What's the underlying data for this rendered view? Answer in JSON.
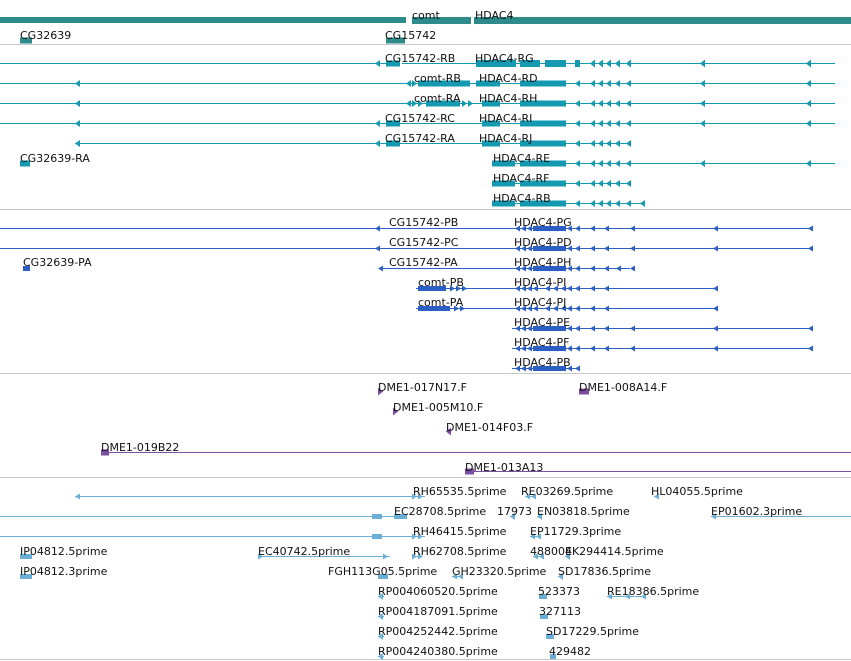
{
  "colors": {
    "genes": "#2e8b8b",
    "rna": "#149ab0",
    "protein": "#2b5fc4",
    "clone": "#7b4fa5",
    "est": "#6baed6",
    "divider": "#c8c8c8"
  },
  "tracks": [
    {
      "id": "genes",
      "features": [
        {
          "name": "comt",
          "color": "#2e8b8b"
        },
        {
          "name": "HDAC4",
          "color": "#2e8b8b"
        },
        {
          "name": "CG32639",
          "color": "#2e8b8b"
        },
        {
          "name": "CG15742",
          "color": "#2e8b8b"
        }
      ]
    },
    {
      "id": "transcripts",
      "features": [
        {
          "name": "CG15742-RB",
          "color": "#149ab0"
        },
        {
          "name": "HDAC4-RG",
          "color": "#149ab0"
        },
        {
          "name": "comt-RB",
          "color": "#149ab0"
        },
        {
          "name": "HDAC4-RD",
          "color": "#149ab0"
        },
        {
          "name": "comt-RA",
          "color": "#149ab0"
        },
        {
          "name": "HDAC4-RH",
          "color": "#149ab0"
        },
        {
          "name": "CG15742-RC",
          "color": "#149ab0"
        },
        {
          "name": "HDAC4-RI",
          "color": "#149ab0"
        },
        {
          "name": "CG15742-RA",
          "color": "#149ab0"
        },
        {
          "name": "HDAC4-RJ",
          "color": "#149ab0"
        },
        {
          "name": "CG32639-RA",
          "color": "#149ab0"
        },
        {
          "name": "HDAC4-RE",
          "color": "#149ab0"
        },
        {
          "name": "HDAC4-RF",
          "color": "#149ab0"
        },
        {
          "name": "HDAC4-RB",
          "color": "#149ab0"
        }
      ]
    },
    {
      "id": "proteins",
      "features": [
        {
          "name": "CG15742-PB",
          "color": "#2b5fc4"
        },
        {
          "name": "HDAC4-PG",
          "color": "#2b5fc4"
        },
        {
          "name": "CG15742-PC",
          "color": "#2b5fc4"
        },
        {
          "name": "HDAC4-PD",
          "color": "#2b5fc4"
        },
        {
          "name": "CG32639-PA",
          "color": "#2b5fc4"
        },
        {
          "name": "CG15742-PA",
          "color": "#2b5fc4"
        },
        {
          "name": "HDAC4-PH",
          "color": "#2b5fc4"
        },
        {
          "name": "comt-PB",
          "color": "#2b5fc4"
        },
        {
          "name": "HDAC4-PI",
          "color": "#2b5fc4"
        },
        {
          "name": "comt-PA",
          "color": "#2b5fc4"
        },
        {
          "name": "HDAC4-PJ",
          "color": "#2b5fc4"
        },
        {
          "name": "HDAC4-PE",
          "color": "#2b5fc4"
        },
        {
          "name": "HDAC4-PF",
          "color": "#2b5fc4"
        },
        {
          "name": "HDAC4-PB",
          "color": "#2b5fc4"
        }
      ]
    },
    {
      "id": "clones",
      "features": [
        {
          "name": "DME1-017N17.F",
          "color": "#7b4fa5"
        },
        {
          "name": "DME1-008A14.F",
          "color": "#7b4fa5"
        },
        {
          "name": "DME1-005M10.F",
          "color": "#7b4fa5"
        },
        {
          "name": "DME1-014F03.F",
          "color": "#7b4fa5"
        },
        {
          "name": "DME1-019B22",
          "color": "#7b4fa5"
        },
        {
          "name": "DME1-013A13",
          "color": "#7b4fa5"
        }
      ]
    },
    {
      "id": "ests",
      "features": [
        {
          "name": "RH65535.5prime",
          "color": "#6baed6"
        },
        {
          "name": "RE03269.5prime",
          "color": "#6baed6"
        },
        {
          "name": "HL04055.5prime",
          "color": "#6baed6"
        },
        {
          "name": "EC28708.5prime",
          "color": "#6baed6"
        },
        {
          "name": "17973",
          "color": "#6baed6"
        },
        {
          "name": "EN03818.5prime",
          "color": "#6baed6"
        },
        {
          "name": "EP01602.3prime",
          "color": "#6baed6"
        },
        {
          "name": "RH46415.5prime",
          "color": "#6baed6"
        },
        {
          "name": "EP11729.3prime",
          "color": "#6baed6"
        },
        {
          "name": "IP04812.5prime",
          "color": "#6baed6"
        },
        {
          "name": "EC40742.5prime",
          "color": "#6baed6"
        },
        {
          "name": "RH62708.5prime",
          "color": "#6baed6"
        },
        {
          "name": "488004",
          "color": "#6baed6"
        },
        {
          "name": "EK294414.5prime",
          "color": "#6baed6"
        },
        {
          "name": "IP04812.3prime",
          "color": "#6baed6"
        },
        {
          "name": "FGH113G05.5prime",
          "color": "#6baed6"
        },
        {
          "name": "GH23320.5prime",
          "color": "#6baed6"
        },
        {
          "name": "SD17836.5prime",
          "color": "#6baed6"
        },
        {
          "name": "RP004060520.5prime",
          "color": "#6baed6"
        },
        {
          "name": "523373",
          "color": "#6baed6"
        },
        {
          "name": "RE18386.5prime",
          "color": "#6baed6"
        },
        {
          "name": "RP004187091.5prime",
          "color": "#6baed6"
        },
        {
          "name": "327113",
          "color": "#6baed6"
        },
        {
          "name": "RP004252442.5prime",
          "color": "#6baed6"
        },
        {
          "name": "SD17229.5prime",
          "color": "#6baed6"
        },
        {
          "name": "RP004240380.5prime",
          "color": "#6baed6"
        },
        {
          "name": "429482",
          "color": "#6baed6"
        }
      ]
    }
  ]
}
